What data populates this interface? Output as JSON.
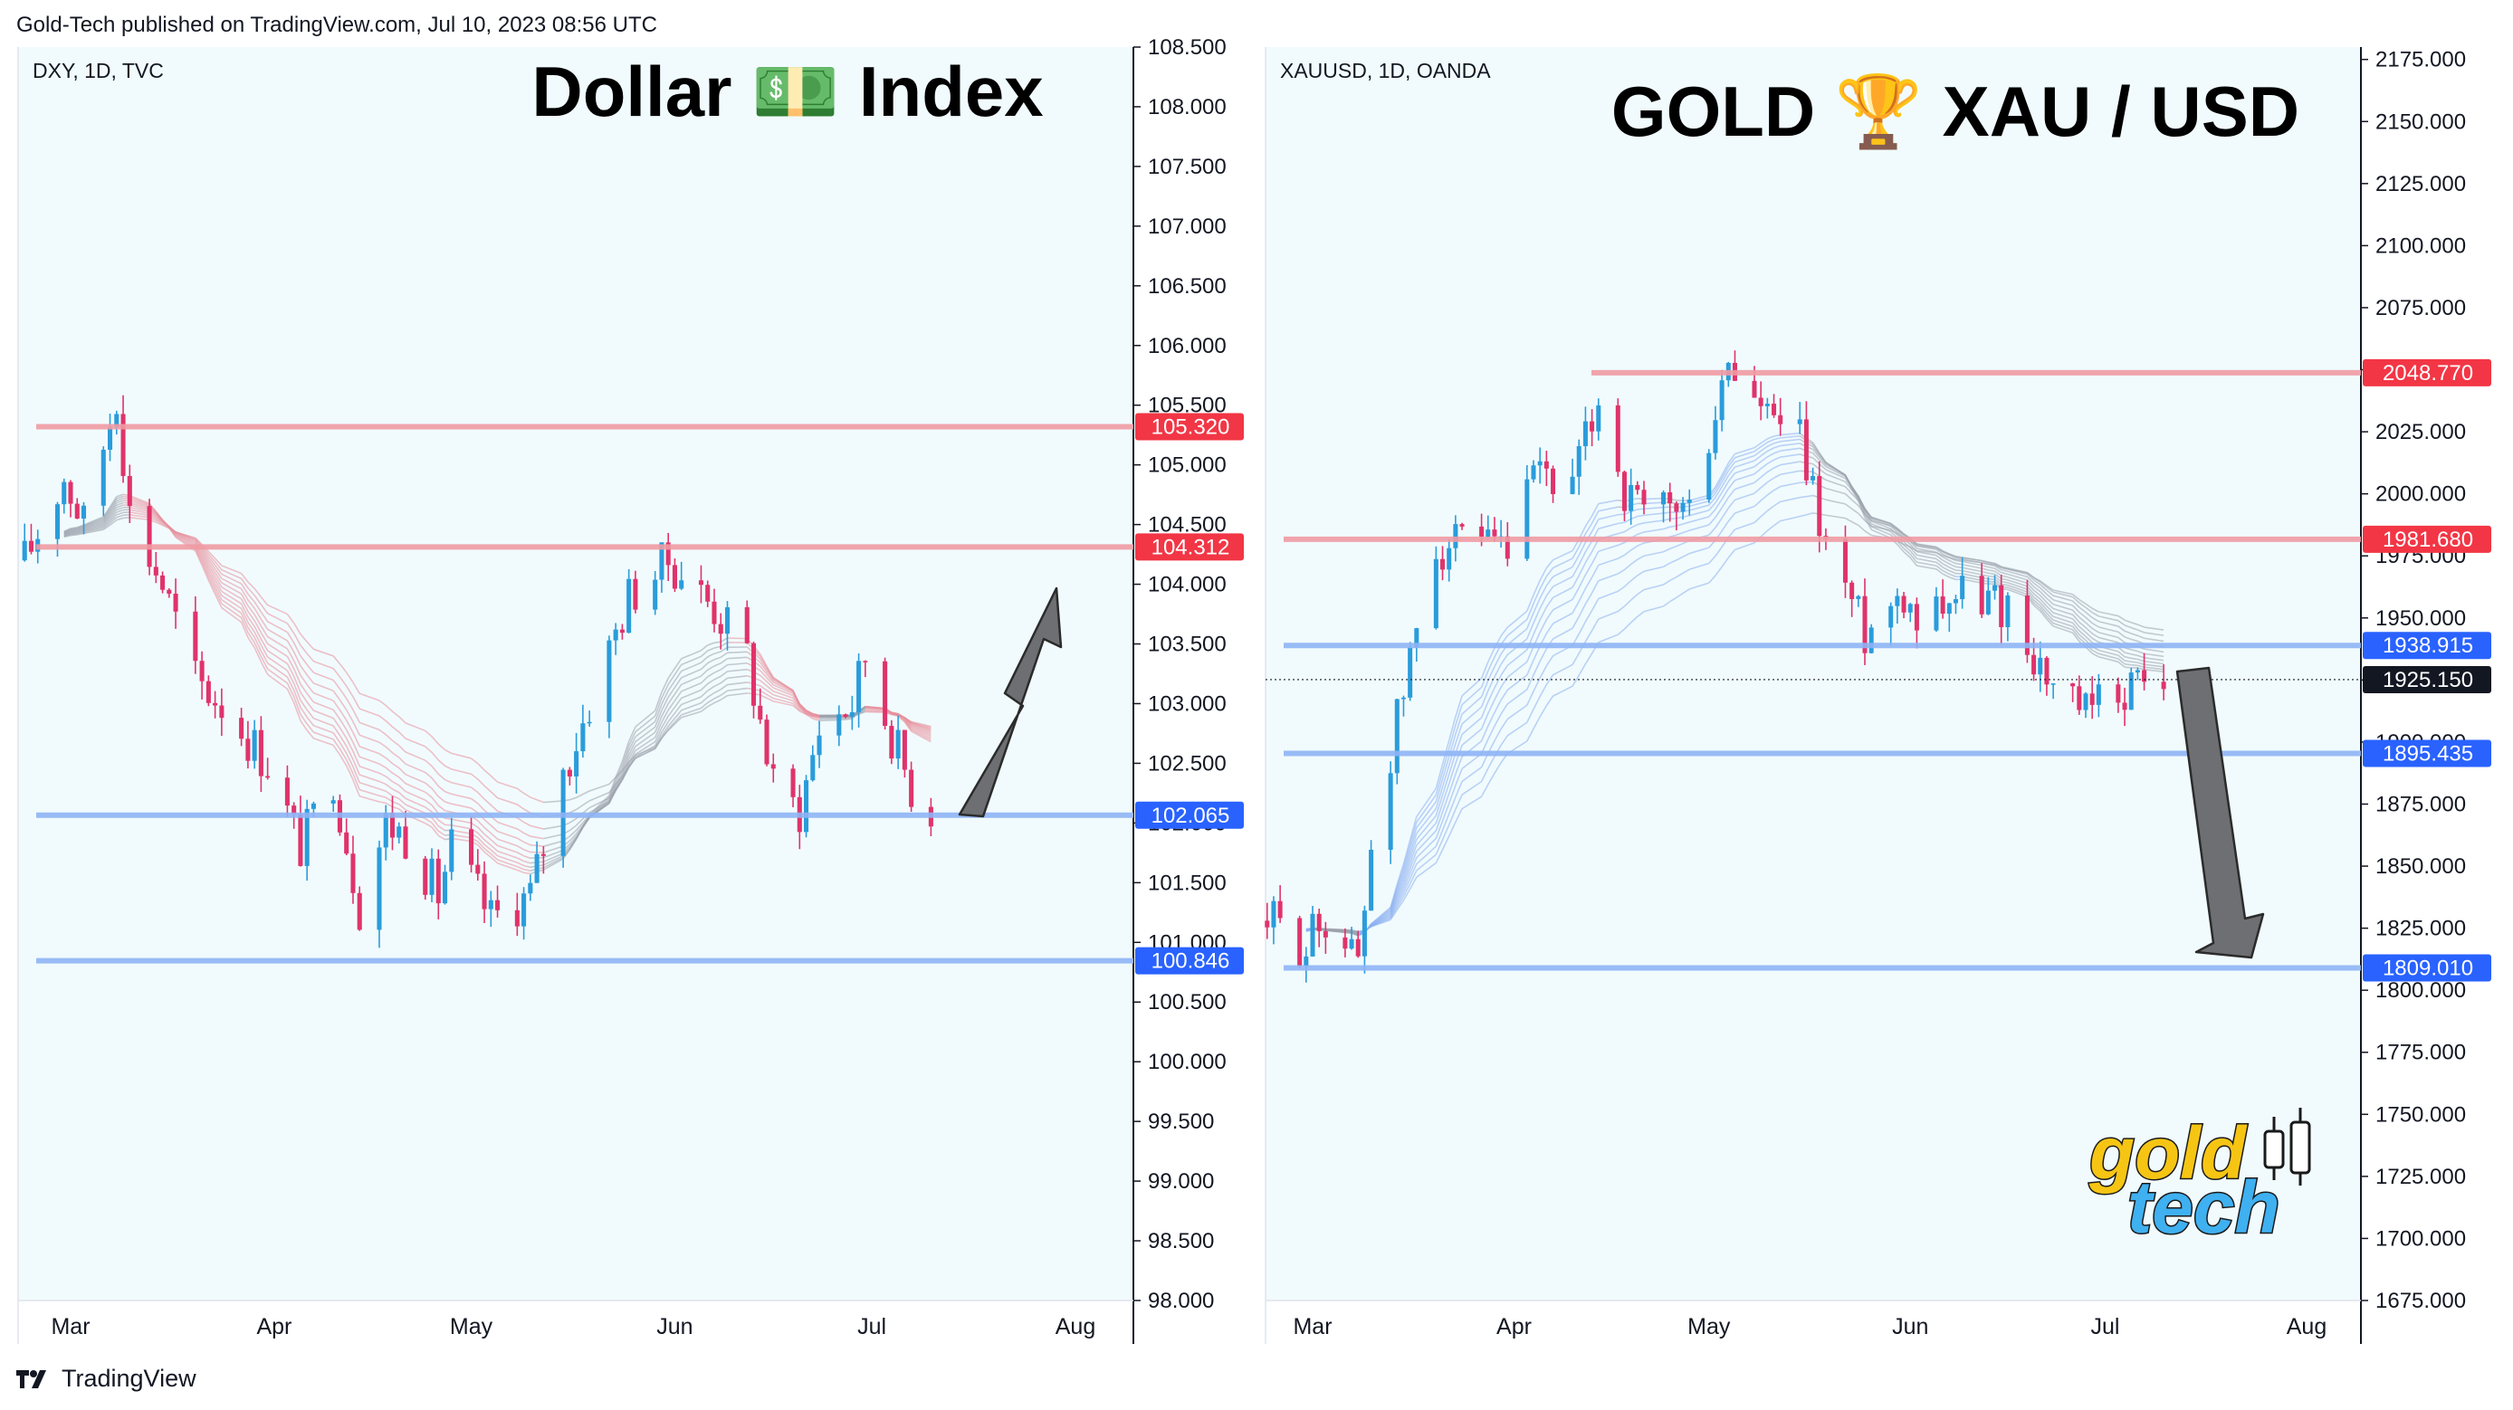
{
  "attribution": "Gold-Tech published on TradingView.com, Jul 10, 2023 08:56 UTC",
  "footer": {
    "brand": "TradingView"
  },
  "colors": {
    "up": "#2a9cdb",
    "down": "#e0336b",
    "res": "#f09aa3",
    "sup": "#8eb4f5",
    "red_label": "#f23645",
    "blue_label": "#2962ff",
    "bg": "#f1fbfd"
  },
  "chart_data": [
    {
      "type": "candlestick",
      "symbol_label": "DXY, 1D, TVC",
      "title": "Dollar 💵 Index",
      "title_icon": "dollar-banknote-emoji",
      "x_labels": [
        "Mar",
        "Apr",
        "May",
        "Jun",
        "Jul",
        "Aug"
      ],
      "y_ticks": [
        "108.500",
        "108.000",
        "107.500",
        "107.000",
        "106.500",
        "106.000",
        "105.500",
        "105.000",
        "104.500",
        "104.000",
        "103.500",
        "103.000",
        "102.500",
        "102.000",
        "101.500",
        "101.000",
        "100.500",
        "100.000",
        "99.500",
        "99.000",
        "98.500",
        "98.000"
      ],
      "ylim": [
        98.0,
        108.5
      ],
      "levels": [
        {
          "value": 105.32,
          "label": "105.320",
          "kind": "resistance"
        },
        {
          "value": 104.312,
          "label": "104.312",
          "kind": "resistance"
        },
        {
          "value": 102.065,
          "label": "102.065",
          "kind": "support"
        },
        {
          "value": 100.846,
          "label": "100.846",
          "kind": "support"
        }
      ],
      "close_path": [
        {
          "date": "2023-02-22",
          "close": 104.2
        },
        {
          "date": "2023-02-28",
          "close": 104.9
        },
        {
          "date": "2023-03-03",
          "close": 104.5
        },
        {
          "date": "2023-03-08",
          "close": 105.6
        },
        {
          "date": "2023-03-10",
          "close": 104.6
        },
        {
          "date": "2023-03-15",
          "close": 104.0
        },
        {
          "date": "2023-03-20",
          "close": 103.2
        },
        {
          "date": "2023-03-24",
          "close": 103.0
        },
        {
          "date": "2023-03-31",
          "close": 102.5
        },
        {
          "date": "2023-04-05",
          "close": 101.8
        },
        {
          "date": "2023-04-10",
          "close": 102.4
        },
        {
          "date": "2023-04-14",
          "close": 101.3
        },
        {
          "date": "2023-04-18",
          "close": 102.0
        },
        {
          "date": "2023-04-21",
          "close": 101.9
        },
        {
          "date": "2023-04-26",
          "close": 101.4
        },
        {
          "date": "2023-04-28",
          "close": 101.8
        },
        {
          "date": "2023-05-04",
          "close": 101.2
        },
        {
          "date": "2023-05-10",
          "close": 101.4
        },
        {
          "date": "2023-05-15",
          "close": 102.4
        },
        {
          "date": "2023-05-19",
          "close": 103.0
        },
        {
          "date": "2023-05-25",
          "close": 103.9
        },
        {
          "date": "2023-05-31",
          "close": 104.2
        },
        {
          "date": "2023-06-02",
          "close": 104.1
        },
        {
          "date": "2023-06-07",
          "close": 103.8
        },
        {
          "date": "2023-06-12",
          "close": 103.4
        },
        {
          "date": "2023-06-16",
          "close": 102.3
        },
        {
          "date": "2023-06-20",
          "close": 102.1
        },
        {
          "date": "2023-06-23",
          "close": 102.8
        },
        {
          "date": "2023-06-28",
          "close": 103.0
        },
        {
          "date": "2023-06-30",
          "close": 103.4
        },
        {
          "date": "2023-07-03",
          "close": 102.9
        },
        {
          "date": "2023-07-07",
          "close": 102.3
        },
        {
          "date": "2023-07-10",
          "close": 102.1
        }
      ],
      "annotation_arrow": "up"
    },
    {
      "type": "candlestick",
      "symbol_label": "XAUUSD, 1D, OANDA",
      "title": "GOLD 🏆 XAU / USD",
      "title_icon": "trophy-emoji",
      "x_labels": [
        "Mar",
        "Apr",
        "May",
        "Jun",
        "Jul",
        "Aug"
      ],
      "y_ticks": [
        "2175.000",
        "2150.000",
        "2125.000",
        "2100.000",
        "2075.000",
        "2050.000",
        "2025.000",
        "2000.000",
        "1975.000",
        "1950.000",
        "1925.000",
        "1900.000",
        "1875.000",
        "1850.000",
        "1825.000",
        "1800.000",
        "1775.000",
        "1750.000",
        "1725.000",
        "1700.000",
        "1675.000"
      ],
      "ylim": [
        1675,
        2180
      ],
      "levels": [
        {
          "value": 2048.77,
          "label": "2048.770",
          "kind": "resistance"
        },
        {
          "value": 1981.68,
          "label": "1981.680",
          "kind": "resistance"
        },
        {
          "value": 1938.915,
          "label": "1938.915",
          "kind": "support"
        },
        {
          "value": 1895.435,
          "label": "1895.435",
          "kind": "support"
        },
        {
          "value": 1809.01,
          "label": "1809.010",
          "kind": "support"
        }
      ],
      "last_price": {
        "value": 1925.15,
        "label": "1925.150"
      },
      "close_path": [
        {
          "date": "2023-02-22",
          "close": 1828
        },
        {
          "date": "2023-02-28",
          "close": 1818
        },
        {
          "date": "2023-03-03",
          "close": 1830
        },
        {
          "date": "2023-03-08",
          "close": 1812
        },
        {
          "date": "2023-03-10",
          "close": 1860
        },
        {
          "date": "2023-03-15",
          "close": 1920
        },
        {
          "date": "2023-03-20",
          "close": 1980
        },
        {
          "date": "2023-03-24",
          "close": 1978
        },
        {
          "date": "2023-03-31",
          "close": 1975
        },
        {
          "date": "2023-04-05",
          "close": 2010
        },
        {
          "date": "2023-04-10",
          "close": 2000
        },
        {
          "date": "2023-04-14",
          "close": 2040
        },
        {
          "date": "2023-04-18",
          "close": 2000
        },
        {
          "date": "2023-04-21",
          "close": 1990
        },
        {
          "date": "2023-04-26",
          "close": 1995
        },
        {
          "date": "2023-04-28",
          "close": 1992
        },
        {
          "date": "2023-05-04",
          "close": 2052
        },
        {
          "date": "2023-05-10",
          "close": 2030
        },
        {
          "date": "2023-05-15",
          "close": 2020
        },
        {
          "date": "2023-05-19",
          "close": 1980
        },
        {
          "date": "2023-05-25",
          "close": 1945
        },
        {
          "date": "2023-05-31",
          "close": 1962
        },
        {
          "date": "2023-06-02",
          "close": 1952
        },
        {
          "date": "2023-06-07",
          "close": 1960
        },
        {
          "date": "2023-06-12",
          "close": 1958
        },
        {
          "date": "2023-06-16",
          "close": 1955
        },
        {
          "date": "2023-06-20",
          "close": 1935
        },
        {
          "date": "2023-06-23",
          "close": 1920
        },
        {
          "date": "2023-06-28",
          "close": 1910
        },
        {
          "date": "2023-06-30",
          "close": 1915
        },
        {
          "date": "2023-07-03",
          "close": 1921
        },
        {
          "date": "2023-07-07",
          "close": 1925
        },
        {
          "date": "2023-07-10",
          "close": 1925
        }
      ],
      "annotation_arrow": "down",
      "watermark": {
        "line1": "gold",
        "line2": "tech"
      }
    }
  ]
}
